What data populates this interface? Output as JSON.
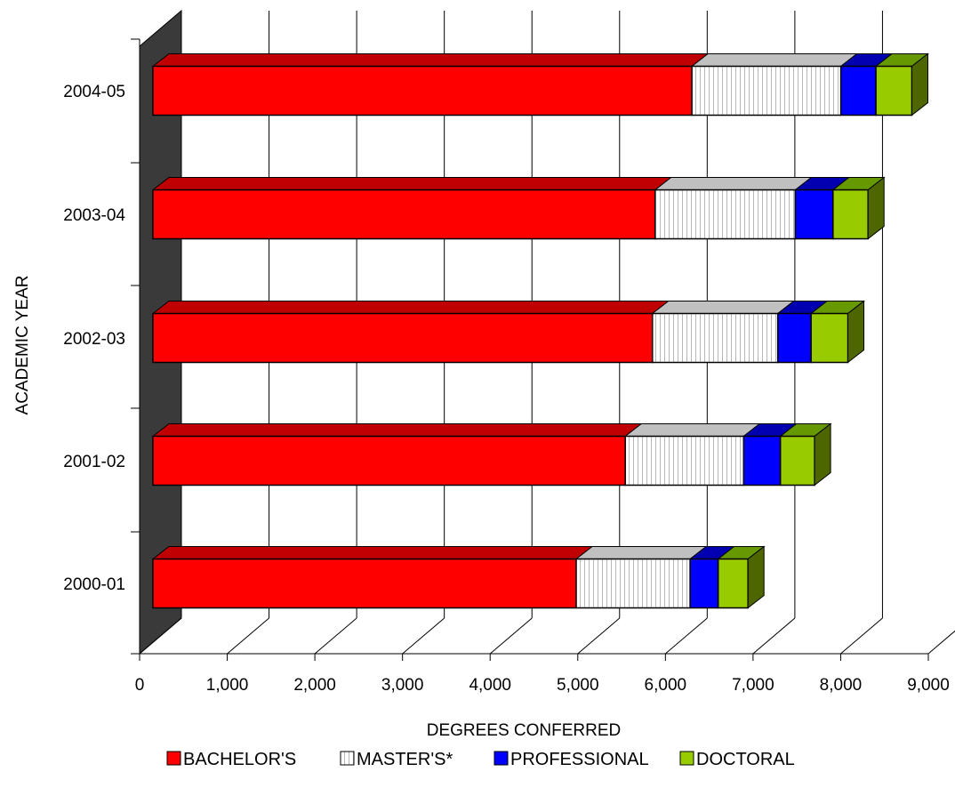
{
  "chart_data": {
    "type": "bar",
    "orientation": "horizontal",
    "stacked": true,
    "three_d": true,
    "title": "",
    "xlabel": "DEGREES CONFERRED",
    "ylabel": "ACADEMIC YEAR",
    "xlim": [
      0,
      9000
    ],
    "xticks": [
      0,
      1000,
      2000,
      3000,
      4000,
      5000,
      6000,
      7000,
      8000,
      9000
    ],
    "xtick_labels": [
      "0",
      "1,000",
      "2,000",
      "3,000",
      "4,000",
      "5,000",
      "6,000",
      "7,000",
      "8,000",
      "9,000"
    ],
    "grid": "vertical",
    "legend_position": "bottom",
    "categories": [
      "2000-01",
      "2001-02",
      "2002-03",
      "2003-04",
      "2004-05"
    ],
    "series": [
      {
        "name": "BACHELOR'S",
        "values": [
          4830,
          5390,
          5700,
          5730,
          6150
        ],
        "color": "#ff0000",
        "top_color": "#c00000",
        "side_color": "#900000"
      },
      {
        "name": "MASTER'S*",
        "values": [
          1300,
          1350,
          1430,
          1600,
          1700
        ],
        "color": "#ffffff",
        "top_color": "#c0c0c0",
        "side_color": "#999999",
        "pattern": "vertical-lines"
      },
      {
        "name": "PROFESSIONAL",
        "values": [
          320,
          420,
          380,
          430,
          400
        ],
        "color": "#0000ff",
        "top_color": "#0000b0",
        "side_color": "#000080"
      },
      {
        "name": "DOCTORAL",
        "values": [
          340,
          390,
          420,
          400,
          410
        ],
        "color": "#99cc00",
        "top_color": "#669900",
        "side_color": "#4d6600"
      }
    ]
  }
}
